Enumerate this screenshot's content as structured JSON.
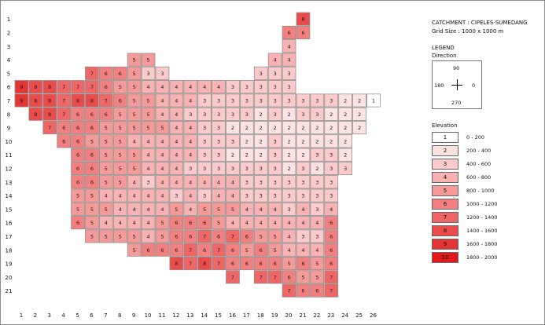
{
  "info": {
    "catchment": "CATCHMENT : CIPELES-SUMEDANG",
    "grid_size": "Grid Size : 1000 x 1000 m"
  },
  "legend": {
    "title": "LEGEND",
    "direction_title": "Direction",
    "dir_north": "90",
    "dir_east": "0",
    "dir_west": "180",
    "dir_south": "270",
    "elevation_title": "Elevation",
    "classes": [
      {
        "value": "1",
        "label": "0 - 200",
        "color": "#ffffff"
      },
      {
        "value": "2",
        "label": "200 - 400",
        "color": "#fde2e2"
      },
      {
        "value": "3",
        "label": "400 - 600",
        "color": "#fbcaca"
      },
      {
        "value": "4",
        "label": "600 - 800",
        "color": "#f8b2b2"
      },
      {
        "value": "5",
        "label": "800 - 1000",
        "color": "#f59999"
      },
      {
        "value": "6",
        "label": "1000 - 1200",
        "color": "#f28080"
      },
      {
        "value": "7",
        "label": "1200 - 1400",
        "color": "#ee6666"
      },
      {
        "value": "8",
        "label": "1400 - 1600",
        "color": "#ea4c4c"
      },
      {
        "value": "9",
        "label": "1600 - 1800",
        "color": "#e63333"
      },
      {
        "value": "10",
        "label": "1800 - 2000",
        "color": "#e01a1a"
      }
    ]
  },
  "grid": {
    "columns": [
      "1",
      "2",
      "3",
      "4",
      "5",
      "6",
      "7",
      "8",
      "9",
      "10",
      "11",
      "12",
      "13",
      "14",
      "15",
      "16",
      "17",
      "18",
      "19",
      "20",
      "21",
      "22",
      "23",
      "24",
      "25",
      "26"
    ],
    "rows": [
      "1",
      "2",
      "3",
      "4",
      "5",
      "6",
      "7",
      "8",
      "9",
      "10",
      "11",
      "12",
      "13",
      "14",
      "15",
      "16",
      "17",
      "18",
      "19",
      "20",
      "21"
    ],
    "cells": [
      [
        1,
        [
          [
            21,
            8
          ]
        ]
      ],
      [
        2,
        [
          [
            20,
            6
          ],
          [
            21,
            6
          ]
        ]
      ],
      [
        3,
        [
          [
            20,
            4
          ]
        ]
      ],
      [
        4,
        [
          [
            9,
            5
          ],
          [
            10,
            5
          ],
          [
            19,
            4
          ],
          [
            20,
            4
          ]
        ]
      ],
      [
        5,
        [
          [
            6,
            7
          ],
          [
            7,
            6
          ],
          [
            8,
            6
          ],
          [
            9,
            5
          ],
          [
            10,
            3
          ],
          [
            11,
            3
          ],
          [
            18,
            3
          ],
          [
            19,
            3
          ],
          [
            20,
            3
          ]
        ]
      ],
      [
        6,
        [
          [
            1,
            9
          ],
          [
            2,
            8
          ],
          [
            3,
            8
          ],
          [
            4,
            7
          ],
          [
            5,
            7
          ],
          [
            6,
            7
          ],
          [
            7,
            6
          ],
          [
            8,
            5
          ],
          [
            9,
            5
          ],
          [
            10,
            4
          ],
          [
            11,
            4
          ],
          [
            12,
            4
          ],
          [
            13,
            4
          ],
          [
            14,
            4
          ],
          [
            15,
            4
          ],
          [
            16,
            3
          ],
          [
            17,
            3
          ],
          [
            18,
            3
          ],
          [
            19,
            3
          ],
          [
            20,
            3
          ]
        ]
      ],
      [
        7,
        [
          [
            1,
            9
          ],
          [
            2,
            8
          ],
          [
            3,
            8
          ],
          [
            4,
            7
          ],
          [
            5,
            8
          ],
          [
            6,
            8
          ],
          [
            7,
            7
          ],
          [
            8,
            6
          ],
          [
            9,
            5
          ],
          [
            10,
            5
          ],
          [
            11,
            4
          ],
          [
            12,
            4
          ],
          [
            13,
            4
          ],
          [
            14,
            3
          ],
          [
            15,
            3
          ],
          [
            16,
            3
          ],
          [
            17,
            3
          ],
          [
            18,
            3
          ],
          [
            19,
            3
          ],
          [
            20,
            3
          ],
          [
            21,
            3
          ],
          [
            22,
            3
          ],
          [
            23,
            3
          ],
          [
            24,
            2
          ],
          [
            25,
            2
          ],
          [
            26,
            1
          ]
        ]
      ],
      [
        8,
        [
          [
            2,
            8
          ],
          [
            3,
            8
          ],
          [
            4,
            7
          ],
          [
            5,
            6
          ],
          [
            6,
            6
          ],
          [
            7,
            6
          ],
          [
            8,
            5
          ],
          [
            9,
            5
          ],
          [
            10,
            5
          ],
          [
            11,
            4
          ],
          [
            12,
            4
          ],
          [
            13,
            3
          ],
          [
            14,
            3
          ],
          [
            15,
            3
          ],
          [
            16,
            3
          ],
          [
            17,
            3
          ],
          [
            18,
            2
          ],
          [
            19,
            3
          ],
          [
            20,
            2
          ],
          [
            21,
            3
          ],
          [
            22,
            3
          ],
          [
            23,
            2
          ],
          [
            24,
            2
          ],
          [
            25,
            2
          ]
        ]
      ],
      [
        9,
        [
          [
            3,
            7
          ],
          [
            4,
            6
          ],
          [
            5,
            6
          ],
          [
            6,
            6
          ],
          [
            7,
            5
          ],
          [
            8,
            5
          ],
          [
            9,
            5
          ],
          [
            10,
            5
          ],
          [
            11,
            5
          ],
          [
            12,
            4
          ],
          [
            13,
            4
          ],
          [
            14,
            3
          ],
          [
            15,
            3
          ],
          [
            16,
            2
          ],
          [
            17,
            2
          ],
          [
            18,
            2
          ],
          [
            19,
            2
          ],
          [
            20,
            2
          ],
          [
            21,
            2
          ],
          [
            22,
            2
          ],
          [
            23,
            2
          ],
          [
            24,
            2
          ],
          [
            25,
            2
          ]
        ]
      ],
      [
        10,
        [
          [
            4,
            6
          ],
          [
            5,
            6
          ],
          [
            6,
            5
          ],
          [
            7,
            5
          ],
          [
            8,
            5
          ],
          [
            9,
            4
          ],
          [
            10,
            4
          ],
          [
            11,
            4
          ],
          [
            12,
            4
          ],
          [
            13,
            4
          ],
          [
            14,
            3
          ],
          [
            15,
            3
          ],
          [
            16,
            3
          ],
          [
            17,
            2
          ],
          [
            18,
            2
          ],
          [
            19,
            3
          ],
          [
            20,
            2
          ],
          [
            21,
            2
          ],
          [
            22,
            2
          ],
          [
            23,
            2
          ],
          [
            24,
            2
          ]
        ]
      ],
      [
        11,
        [
          [
            5,
            6
          ],
          [
            6,
            6
          ],
          [
            7,
            5
          ],
          [
            8,
            5
          ],
          [
            9,
            5
          ],
          [
            10,
            4
          ],
          [
            11,
            4
          ],
          [
            12,
            4
          ],
          [
            13,
            4
          ],
          [
            14,
            3
          ],
          [
            15,
            3
          ],
          [
            16,
            2
          ],
          [
            17,
            2
          ],
          [
            18,
            2
          ],
          [
            19,
            3
          ],
          [
            20,
            2
          ],
          [
            21,
            2
          ],
          [
            22,
            3
          ],
          [
            23,
            3
          ],
          [
            24,
            2
          ]
        ]
      ],
      [
        12,
        [
          [
            5,
            6
          ],
          [
            6,
            6
          ],
          [
            7,
            5
          ],
          [
            8,
            5
          ],
          [
            9,
            5
          ],
          [
            10,
            4
          ],
          [
            11,
            4
          ],
          [
            12,
            4
          ],
          [
            13,
            3
          ],
          [
            14,
            3
          ],
          [
            15,
            3
          ],
          [
            16,
            3
          ],
          [
            17,
            3
          ],
          [
            18,
            3
          ],
          [
            19,
            3
          ],
          [
            20,
            2
          ],
          [
            21,
            3
          ],
          [
            22,
            2
          ],
          [
            23,
            3
          ],
          [
            24,
            3
          ]
        ]
      ],
      [
        13,
        [
          [
            5,
            6
          ],
          [
            6,
            6
          ],
          [
            7,
            5
          ],
          [
            8,
            5
          ],
          [
            9,
            4
          ],
          [
            10,
            3
          ],
          [
            11,
            4
          ],
          [
            12,
            4
          ],
          [
            13,
            4
          ],
          [
            14,
            4
          ],
          [
            15,
            4
          ],
          [
            16,
            4
          ],
          [
            17,
            3
          ],
          [
            18,
            3
          ],
          [
            19,
            3
          ],
          [
            20,
            3
          ],
          [
            21,
            3
          ],
          [
            22,
            3
          ],
          [
            23,
            3
          ]
        ]
      ],
      [
        14,
        [
          [
            5,
            5
          ],
          [
            6,
            5
          ],
          [
            7,
            4
          ],
          [
            8,
            4
          ],
          [
            9,
            4
          ],
          [
            10,
            4
          ],
          [
            11,
            4
          ],
          [
            12,
            3
          ],
          [
            13,
            4
          ],
          [
            14,
            3
          ],
          [
            15,
            4
          ],
          [
            16,
            4
          ],
          [
            17,
            3
          ],
          [
            18,
            3
          ],
          [
            19,
            3
          ],
          [
            20,
            3
          ],
          [
            21,
            3
          ],
          [
            22,
            3
          ],
          [
            23,
            3
          ]
        ]
      ],
      [
        15,
        [
          [
            5,
            5
          ],
          [
            6,
            5
          ],
          [
            7,
            5
          ],
          [
            8,
            4
          ],
          [
            9,
            4
          ],
          [
            10,
            4
          ],
          [
            11,
            4
          ],
          [
            12,
            5
          ],
          [
            13,
            4
          ],
          [
            14,
            5
          ],
          [
            15,
            5
          ],
          [
            16,
            5
          ],
          [
            17,
            4
          ],
          [
            18,
            4
          ],
          [
            19,
            4
          ],
          [
            20,
            3
          ],
          [
            21,
            4
          ],
          [
            22,
            3
          ],
          [
            23,
            4
          ]
        ]
      ],
      [
        16,
        [
          [
            5,
            6
          ],
          [
            6,
            5
          ],
          [
            7,
            4
          ],
          [
            8,
            4
          ],
          [
            9,
            4
          ],
          [
            10,
            4
          ],
          [
            11,
            5
          ],
          [
            12,
            6
          ],
          [
            13,
            6
          ],
          [
            14,
            6
          ],
          [
            15,
            5
          ],
          [
            16,
            4
          ],
          [
            17,
            4
          ],
          [
            18,
            4
          ],
          [
            19,
            4
          ],
          [
            20,
            4
          ],
          [
            21,
            4
          ],
          [
            22,
            4
          ],
          [
            23,
            6
          ]
        ]
      ],
      [
        17,
        [
          [
            6,
            5
          ],
          [
            7,
            5
          ],
          [
            8,
            5
          ],
          [
            9,
            5
          ],
          [
            10,
            4
          ],
          [
            11,
            5
          ],
          [
            12,
            6
          ],
          [
            13,
            6
          ],
          [
            14,
            7
          ],
          [
            15,
            6
          ],
          [
            16,
            7
          ],
          [
            17,
            6
          ],
          [
            18,
            5
          ],
          [
            19,
            5
          ],
          [
            20,
            4
          ],
          [
            21,
            3
          ],
          [
            22,
            3
          ],
          [
            23,
            6
          ]
        ]
      ],
      [
        18,
        [
          [
            9,
            5
          ],
          [
            10,
            6
          ],
          [
            11,
            6
          ],
          [
            12,
            6
          ],
          [
            13,
            7
          ],
          [
            14,
            6
          ],
          [
            15,
            7
          ],
          [
            16,
            6
          ],
          [
            17,
            5
          ],
          [
            18,
            6
          ],
          [
            19,
            5
          ],
          [
            20,
            4
          ],
          [
            21,
            4
          ],
          [
            22,
            4
          ],
          [
            23,
            6
          ]
        ]
      ],
      [
        19,
        [
          [
            12,
            8
          ],
          [
            13,
            7
          ],
          [
            14,
            8
          ],
          [
            15,
            7
          ],
          [
            16,
            6
          ],
          [
            17,
            6
          ],
          [
            18,
            6
          ],
          [
            19,
            6
          ],
          [
            20,
            5
          ],
          [
            21,
            6
          ],
          [
            22,
            5
          ],
          [
            23,
            6
          ]
        ]
      ],
      [
        20,
        [
          [
            16,
            7
          ],
          [
            18,
            7
          ],
          [
            19,
            7
          ],
          [
            20,
            6
          ],
          [
            21,
            5
          ],
          [
            22,
            5
          ],
          [
            23,
            7
          ]
        ]
      ],
      [
        21,
        [
          [
            20,
            7
          ],
          [
            21,
            6
          ],
          [
            22,
            6
          ],
          [
            23,
            7
          ]
        ]
      ]
    ]
  }
}
